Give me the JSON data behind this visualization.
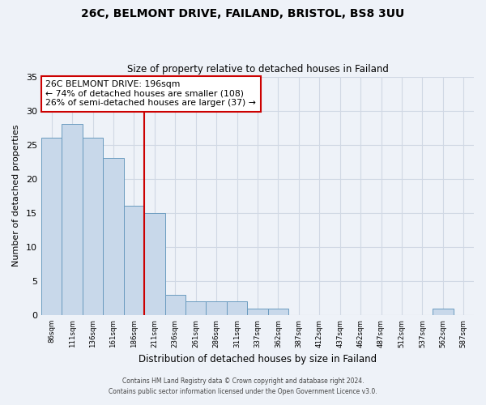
{
  "title1": "26C, BELMONT DRIVE, FAILAND, BRISTOL, BS8 3UU",
  "title2": "Size of property relative to detached houses in Failand",
  "xlabel": "Distribution of detached houses by size in Failand",
  "ylabel": "Number of detached properties",
  "bin_labels": [
    "86sqm",
    "111sqm",
    "136sqm",
    "161sqm",
    "186sqm",
    "211sqm",
    "236sqm",
    "261sqm",
    "286sqm",
    "311sqm",
    "337sqm",
    "362sqm",
    "387sqm",
    "412sqm",
    "437sqm",
    "462sqm",
    "487sqm",
    "512sqm",
    "537sqm",
    "562sqm",
    "587sqm"
  ],
  "n_bins": 21,
  "counts": [
    26,
    28,
    26,
    23,
    16,
    15,
    3,
    2,
    2,
    2,
    1,
    1,
    0,
    0,
    0,
    0,
    0,
    0,
    0,
    1,
    0
  ],
  "bar_facecolor": "#c8d8ea",
  "bar_edgecolor": "#6a9bbf",
  "grid_color": "#d0d8e4",
  "background_color": "#eef2f8",
  "marker_bin": 4,
  "marker_label": "26C BELMONT DRIVE: 196sqm",
  "annotation_line1": "← 74% of detached houses are smaller (108)",
  "annotation_line2": "26% of semi-detached houses are larger (37) →",
  "annotation_box_edgecolor": "#cc0000",
  "annotation_box_facecolor": "#ffffff",
  "vline_color": "#cc0000",
  "ylim": [
    0,
    35
  ],
  "yticks": [
    0,
    5,
    10,
    15,
    20,
    25,
    30,
    35
  ],
  "footer1": "Contains HM Land Registry data © Crown copyright and database right 2024.",
  "footer2": "Contains public sector information licensed under the Open Government Licence v3.0."
}
